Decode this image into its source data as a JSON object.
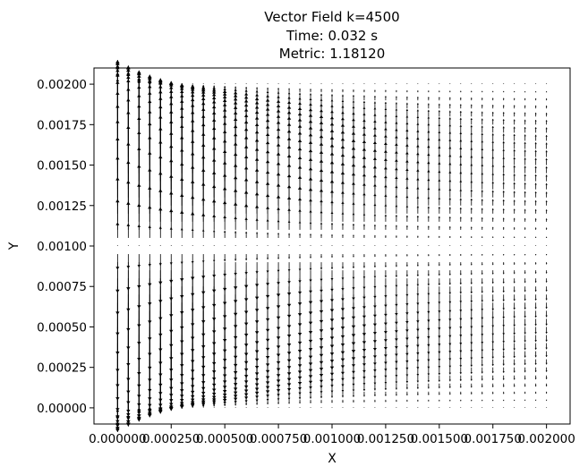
{
  "chart_data": {
    "type": "quiver",
    "title_lines": [
      "Vector Field k=4500",
      "Time: 0.032 s",
      "Metric: 1.18120"
    ],
    "xlabel": "X",
    "ylabel": "Y",
    "xlim": [
      -0.00011,
      0.00211
    ],
    "ylim": [
      -0.0001,
      0.0021
    ],
    "x_ticks": [
      0.0,
      0.00025,
      0.0005,
      0.00075,
      0.001,
      0.00125,
      0.0015,
      0.00175,
      0.002
    ],
    "x_tick_labels": [
      "0.000000",
      "0.000250",
      "0.000500",
      "0.000750",
      "0.001000",
      "0.001250",
      "0.001500",
      "0.001750",
      "0.002000"
    ],
    "y_ticks": [
      0.0,
      0.00025,
      0.0005,
      0.00075,
      0.001,
      0.00125,
      0.0015,
      0.00175,
      0.002
    ],
    "y_tick_labels": [
      "0.00000",
      "0.00025",
      "0.00050",
      "0.00075",
      "0.00100",
      "0.00125",
      "0.00150",
      "0.00175",
      "0.00200"
    ],
    "grid": false,
    "arrow_color": "#000000",
    "grid_points": {
      "nx": 41,
      "ny": 41,
      "x_range": [
        0.0,
        0.002
      ],
      "y_range": [
        0.0,
        0.002
      ]
    },
    "field_description": "vertical velocity field: strong upward and downward flow near the left boundary, decaying towards the right"
  }
}
